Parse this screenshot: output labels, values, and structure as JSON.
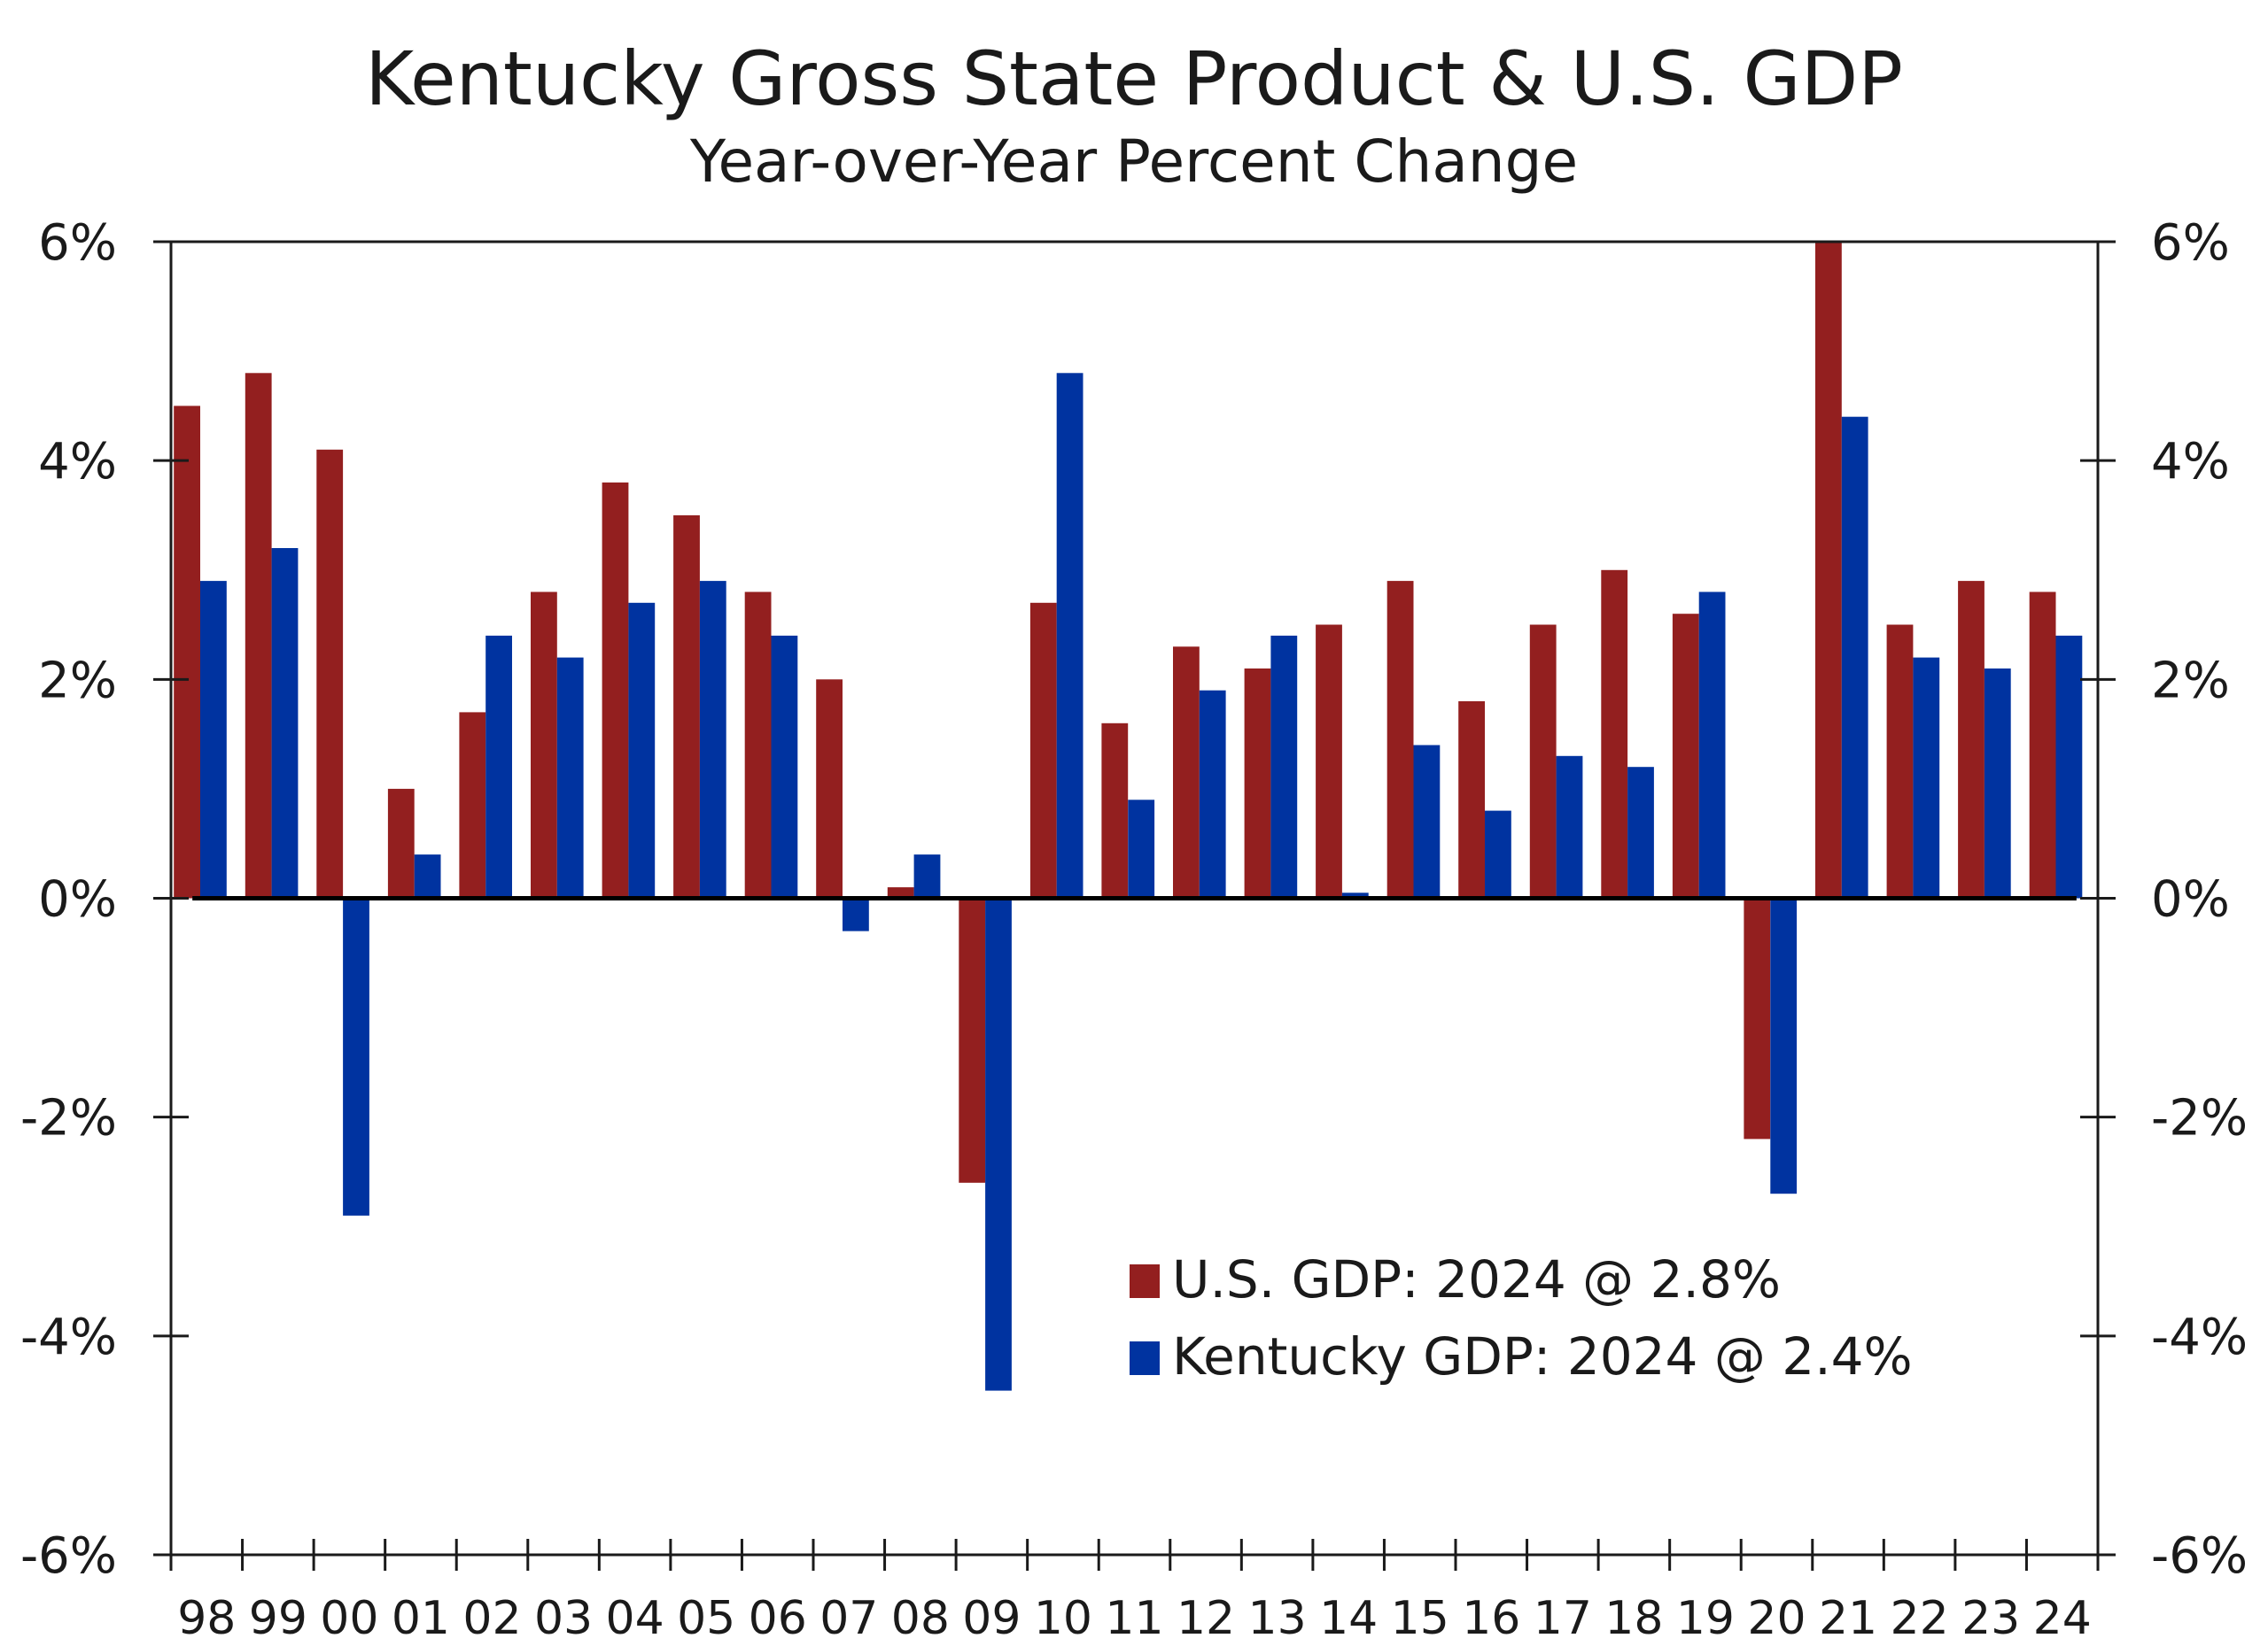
{
  "chart_data": {
    "type": "bar",
    "title": "Kentucky Gross State Product & U.S. GDP",
    "subtitle": "Year-over-Year Percent Change",
    "xlabel": "",
    "ylabel": "",
    "ylim": [
      -6,
      6
    ],
    "yticks": [
      -6,
      -4,
      -2,
      0,
      2,
      4,
      6
    ],
    "ytick_labels": [
      "-6%",
      "-4%",
      "-2%",
      "0%",
      "2%",
      "4%",
      "6%"
    ],
    "secondary_y_axis": true,
    "grid": false,
    "legend_position": "bottom-right-inside",
    "categories": [
      "98",
      "99",
      "00",
      "01",
      "02",
      "03",
      "04",
      "05",
      "06",
      "07",
      "08",
      "09",
      "10",
      "11",
      "12",
      "13",
      "14",
      "15",
      "16",
      "17",
      "18",
      "19",
      "20",
      "21",
      "22",
      "23",
      "24"
    ],
    "series": [
      {
        "name": "U.S. GDP",
        "legend_label": "U.S. GDP: 2024 @ 2.8%",
        "color": "#931f1f",
        "values": [
          4.5,
          4.8,
          4.1,
          1.0,
          1.7,
          2.8,
          3.8,
          3.5,
          2.8,
          2.0,
          0.1,
          -2.6,
          2.7,
          1.6,
          2.3,
          2.1,
          2.5,
          2.9,
          1.8,
          2.5,
          3.0,
          2.6,
          -2.2,
          6.1,
          2.5,
          2.9,
          2.8
        ]
      },
      {
        "name": "Kentucky GDP",
        "legend_label": "Kentucky GDP: 2024 @ 2.4%",
        "color": "#0033a0",
        "values": [
          2.9,
          3.2,
          -2.9,
          0.4,
          2.4,
          2.2,
          2.7,
          2.9,
          2.4,
          -0.3,
          0.4,
          -4.5,
          4.8,
          0.9,
          1.9,
          2.4,
          0.05,
          1.4,
          0.8,
          1.3,
          1.2,
          2.8,
          -2.7,
          4.4,
          2.2,
          2.1,
          2.4
        ]
      }
    ]
  }
}
